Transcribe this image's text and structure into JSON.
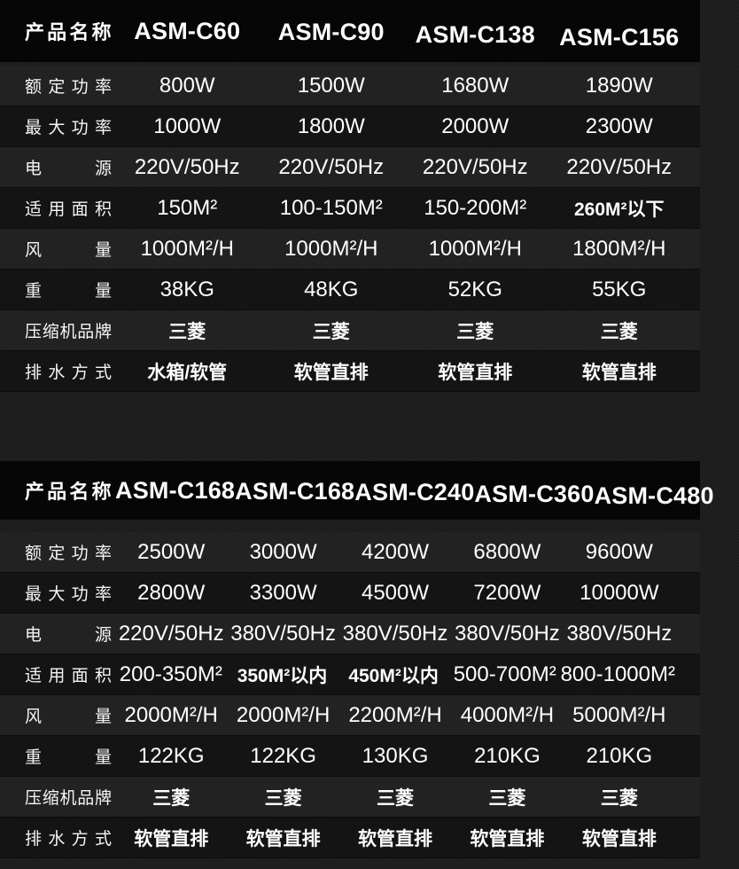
{
  "theme": {
    "page_bg": "#1c1c1c",
    "header_bg": "#060606",
    "row_odd_bg": "#1f1f1f",
    "row_even_bg": "#141414",
    "text_color": "#ffffff"
  },
  "tables": [
    {
      "header": {
        "label": "产品名称",
        "models": [
          "ASM-C60",
          "ASM-C90",
          "ASM-C138",
          "ASM-C156"
        ]
      },
      "rows": [
        {
          "label": "额定功率",
          "values": [
            "800W",
            "1500W",
            "1680W",
            "1890W"
          ]
        },
        {
          "label": "最大功率",
          "values": [
            "1000W",
            "1800W",
            "2000W",
            "2300W"
          ]
        },
        {
          "label": "电源",
          "values": [
            "220V/50Hz",
            "220V/50Hz",
            "220V/50Hz",
            "220V/50Hz"
          ]
        },
        {
          "label": "适用面积",
          "values": [
            "150M²",
            "100-150M²",
            "150-200M²",
            "260M²以下"
          ]
        },
        {
          "label": "风量",
          "values": [
            "1000M²/H",
            "1000M²/H",
            "1000M²/H",
            "1800M²/H"
          ]
        },
        {
          "label": "重量",
          "values": [
            "38KG",
            "48KG",
            "52KG",
            "55KG"
          ]
        },
        {
          "label": "压缩机品牌",
          "values": [
            "三菱",
            "三菱",
            "三菱",
            "三菱"
          ]
        },
        {
          "label": "排水方式",
          "values": [
            "水箱/软管",
            "软管直排",
            "软管直排",
            "软管直排"
          ]
        }
      ]
    },
    {
      "header": {
        "label": "产品名称",
        "models": [
          "ASM-C168",
          "ASM-C168",
          "ASM-C240",
          "ASM-C360",
          "ASM-C480"
        ]
      },
      "rows": [
        {
          "label": "额定功率",
          "values": [
            "2500W",
            "3000W",
            "4200W",
            "6800W",
            "9600W"
          ]
        },
        {
          "label": "最大功率",
          "values": [
            "2800W",
            "3300W",
            "4500W",
            "7200W",
            "10000W"
          ]
        },
        {
          "label": "电源",
          "values": [
            "220V/50Hz",
            "380V/50Hz",
            "380V/50Hz",
            "380V/50Hz",
            "380V/50Hz"
          ]
        },
        {
          "label": "适用面积",
          "values": [
            "200-350M²",
            "350M²以内",
            "450M²以内",
            "500-700M²",
            "800-1000M²"
          ]
        },
        {
          "label": "风量",
          "values": [
            "2000M²/H",
            "2000M²/H",
            "2200M²/H",
            "4000M²/H",
            "5000M²/H"
          ]
        },
        {
          "label": "重量",
          "values": [
            "122KG",
            "122KG",
            "130KG",
            "210KG",
            "210KG"
          ]
        },
        {
          "label": "压缩机品牌",
          "values": [
            "三菱",
            "三菱",
            "三菱",
            "三菱",
            "三菱"
          ]
        },
        {
          "label": "排水方式",
          "values": [
            "软管直排",
            "软管直排",
            "软管直排",
            "软管直排",
            "软管直排"
          ]
        }
      ]
    }
  ]
}
